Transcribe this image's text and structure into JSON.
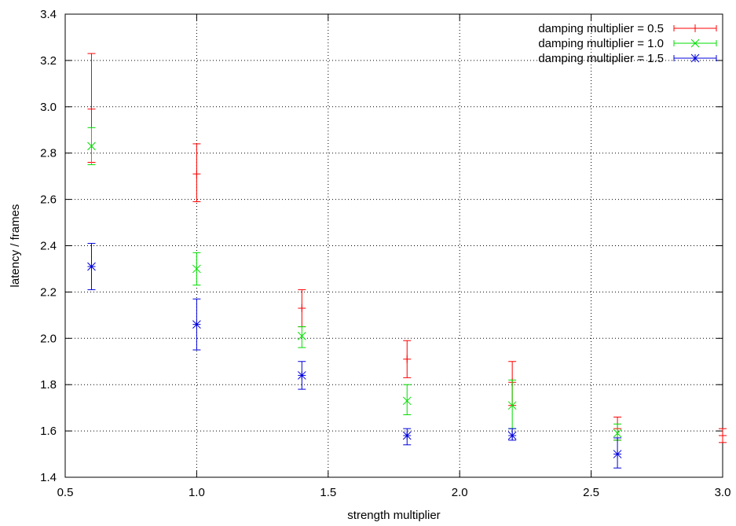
{
  "chart_data": {
    "type": "scatter",
    "title": "",
    "xlabel": "strength multiplier",
    "ylabel": "latency / frames",
    "xlim": [
      0.5,
      3.0
    ],
    "ylim": [
      1.4,
      3.4
    ],
    "xticks": [
      0.5,
      1.0,
      1.5,
      2.0,
      2.5,
      3.0
    ],
    "xtick_labels": [
      "0.5",
      "1.0",
      "1.5",
      "2.0",
      "2.5",
      "3.0"
    ],
    "yticks": [
      1.4,
      1.6,
      1.8,
      2.0,
      2.2,
      2.4,
      2.6,
      2.8,
      3.0,
      3.2,
      3.4
    ],
    "ytick_labels": [
      "1.4",
      "1.6",
      "1.8",
      "2.0",
      "2.2",
      "2.4",
      "2.6",
      "2.8",
      "3.0",
      "3.2",
      "3.4"
    ],
    "grid": true,
    "legend_position": "top-right",
    "error_bars": true,
    "series": [
      {
        "name": "damping multiplier = 0.5",
        "color": "#ff0000",
        "marker": "plus",
        "points": [
          {
            "x": 0.6,
            "y": 2.99,
            "ylow": 2.76,
            "yhigh": 3.23
          },
          {
            "x": 1.0,
            "y": 2.71,
            "ylow": 2.59,
            "yhigh": 2.84
          },
          {
            "x": 1.4,
            "y": 2.13,
            "ylow": 2.05,
            "yhigh": 2.21
          },
          {
            "x": 1.8,
            "y": 1.91,
            "ylow": 1.83,
            "yhigh": 1.99
          },
          {
            "x": 2.2,
            "y": 1.81,
            "ylow": 1.71,
            "yhigh": 1.9
          },
          {
            "x": 2.6,
            "y": 1.61,
            "ylow": 1.56,
            "yhigh": 1.66
          },
          {
            "x": 3.0,
            "y": 1.58,
            "ylow": 1.55,
            "yhigh": 1.61
          }
        ]
      },
      {
        "name": "damping multiplier = 1.0",
        "color": "#00dd00",
        "marker": "cross",
        "points": [
          {
            "x": 0.6,
            "y": 2.83,
            "ylow": 2.75,
            "yhigh": 2.91
          },
          {
            "x": 1.0,
            "y": 2.3,
            "ylow": 2.23,
            "yhigh": 2.37
          },
          {
            "x": 1.4,
            "y": 2.01,
            "ylow": 1.96,
            "yhigh": 2.05
          },
          {
            "x": 1.8,
            "y": 1.73,
            "ylow": 1.67,
            "yhigh": 1.8
          },
          {
            "x": 2.2,
            "y": 1.71,
            "ylow": 1.61,
            "yhigh": 1.82
          },
          {
            "x": 2.6,
            "y": 1.59,
            "ylow": 1.56,
            "yhigh": 1.63
          }
        ]
      },
      {
        "name": "damping multiplier = 1.5",
        "color": "#0000dd",
        "marker": "star",
        "points": [
          {
            "x": 0.6,
            "y": 2.31,
            "ylow": 2.21,
            "yhigh": 2.41
          },
          {
            "x": 1.0,
            "y": 2.06,
            "ylow": 1.95,
            "yhigh": 2.17
          },
          {
            "x": 1.4,
            "y": 1.84,
            "ylow": 1.78,
            "yhigh": 1.9
          },
          {
            "x": 1.8,
            "y": 1.58,
            "ylow": 1.54,
            "yhigh": 1.61
          },
          {
            "x": 2.2,
            "y": 1.58,
            "ylow": 1.56,
            "yhigh": 1.61
          },
          {
            "x": 2.6,
            "y": 1.5,
            "ylow": 1.44,
            "yhigh": 1.57
          }
        ]
      }
    ]
  }
}
